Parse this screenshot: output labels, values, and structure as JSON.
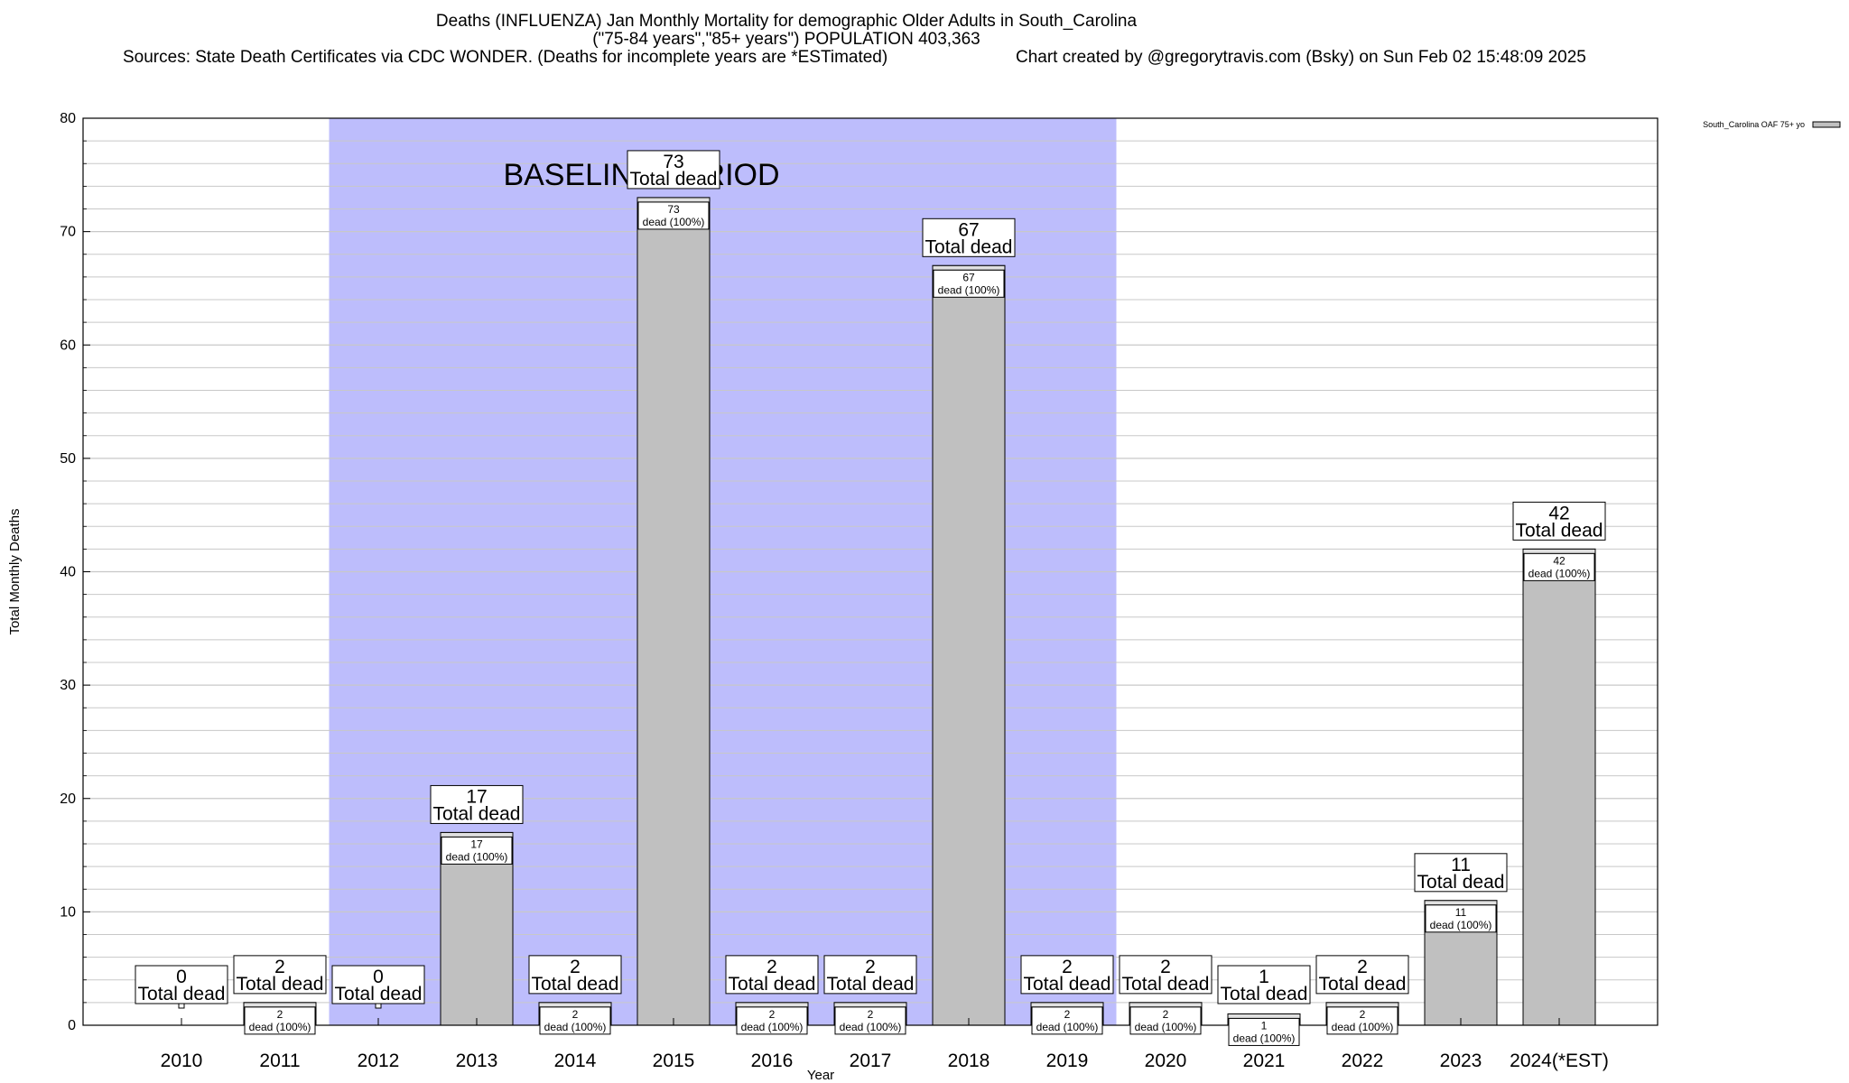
{
  "header": {
    "title_line1": "Deaths (INFLUENZA) Jan Monthly Mortality for demographic Older Adults in South_Carolina",
    "title_line2": "(\"75-84 years\",\"85+ years\") POPULATION 403,363",
    "sources": "Sources: State Death Certificates via CDC WONDER. (Deaths for incomplete years are *ESTimated)",
    "credit": "Chart created by @gregorytravis.com (Bsky) on Sun Feb 02 15:48:09 2025"
  },
  "chart_data": {
    "type": "bar",
    "title": "Deaths (INFLUENZA) Jan Monthly Mortality for demographic Older Adults in South_Carolina",
    "xlabel": "Year",
    "ylabel": "Total Monthly Deaths",
    "ylim": [
      0,
      80
    ],
    "yticks": [
      0,
      10,
      20,
      30,
      40,
      50,
      60,
      70,
      80
    ],
    "grid": true,
    "categories": [
      "2010",
      "2011",
      "2012",
      "2013",
      "2014",
      "2015",
      "2016",
      "2017",
      "2018",
      "2019",
      "2020",
      "2021",
      "2022",
      "2023",
      "2024(*EST)"
    ],
    "series": [
      {
        "name": "South_Carolina OAF 75+ yo",
        "values": [
          0,
          2,
          0,
          17,
          2,
          73,
          2,
          2,
          67,
          2,
          2,
          1,
          2,
          11,
          42
        ]
      }
    ],
    "total_label": "Total dead",
    "inner_label": "dead (100%)",
    "baseline_label": "BASELINE PERIOD",
    "baseline_range": [
      "2012",
      "2019"
    ],
    "legend_position": "top-right",
    "colors": {
      "bar": "#c0c0c0",
      "baseline": "#bdbdfc",
      "grid": "#c8c8c8"
    }
  }
}
